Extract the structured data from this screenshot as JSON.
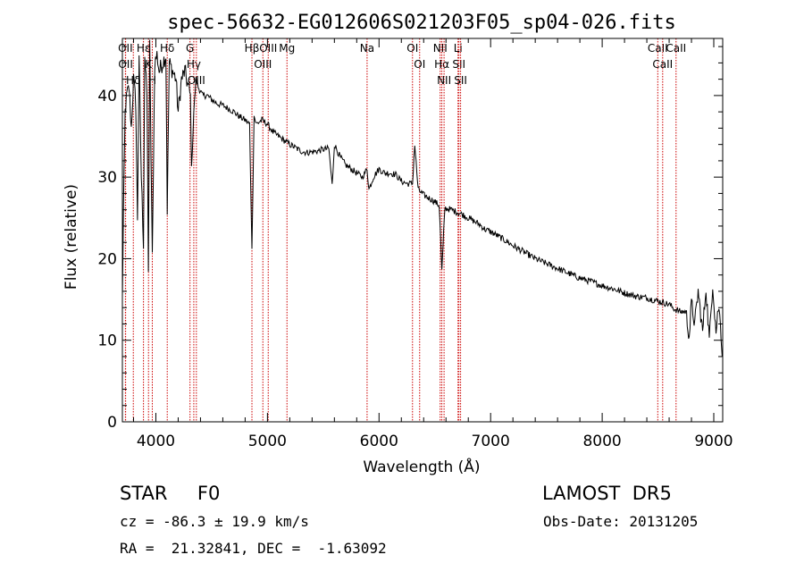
{
  "chart_data": {
    "type": "line",
    "title": "spec-56632-EG012606S021203F05_sp04-026.fits",
    "xlabel": "Wavelength (Å)",
    "ylabel": "Flux (relative)",
    "xlim": [
      3700,
      9080
    ],
    "ylim": [
      0,
      47
    ],
    "xticks": [
      4000,
      5000,
      6000,
      7000,
      8000,
      9000
    ],
    "yticks": [
      0,
      10,
      20,
      30,
      40
    ],
    "series": [
      {
        "color": "#000000",
        "x": [
          3700,
          3710,
          3725,
          3740,
          3760,
          3780,
          3800,
          3820,
          3835,
          3850,
          3870,
          3889,
          3900,
          3920,
          3933,
          3945,
          3968,
          3990,
          4010,
          4030,
          4060,
          4090,
          4102,
          4120,
          4150,
          4180,
          4200,
          4230,
          4260,
          4290,
          4310,
          4320,
          4340,
          4360,
          4380,
          4420,
          4460,
          4500,
          4550,
          4600,
          4650,
          4700,
          4750,
          4800,
          4840,
          4861,
          4880,
          4900,
          4950,
          5000,
          5050,
          5100,
          5150,
          5200,
          5250,
          5300,
          5350,
          5400,
          5450,
          5500,
          5550,
          5580,
          5600,
          5650,
          5700,
          5750,
          5800,
          5850,
          5893,
          5910,
          5950,
          6000,
          6050,
          6100,
          6150,
          6200,
          6250,
          6300,
          6320,
          6350,
          6400,
          6450,
          6500,
          6540,
          6563,
          6590,
          6650,
          6700,
          6750,
          6800,
          6850,
          6900,
          6950,
          7000,
          7100,
          7200,
          7300,
          7400,
          7500,
          7600,
          7700,
          7800,
          7900,
          8000,
          8100,
          8200,
          8300,
          8400,
          8500,
          8600,
          8650,
          8700,
          8750,
          8780,
          8800,
          8830,
          8860,
          8900,
          8930,
          8960,
          8990,
          9020,
          9040,
          9060,
          9075
        ],
        "y": [
          15,
          26,
          38,
          40,
          41,
          36,
          42,
          39,
          25,
          44,
          30,
          22,
          45,
          40,
          19,
          46,
          20,
          44,
          45,
          43,
          44,
          45,
          26,
          44,
          43,
          42,
          38,
          42,
          43,
          41,
          40,
          31,
          38,
          42,
          41,
          40,
          40,
          39.5,
          39,
          38.8,
          38.4,
          38,
          37.4,
          37,
          36.5,
          21,
          37.5,
          36.5,
          37,
          36.5,
          35.5,
          35,
          34.5,
          34,
          33.6,
          33.2,
          33,
          33.1,
          33.2,
          33.4,
          33.5,
          29,
          34,
          32.5,
          31.5,
          31,
          30.5,
          30,
          31,
          28.5,
          30,
          31,
          30.5,
          30.5,
          30.3,
          29.5,
          29.2,
          29.2,
          34,
          28.5,
          27.8,
          27.4,
          27,
          26.5,
          18.5,
          26.2,
          26,
          25.7,
          25.4,
          25,
          24.6,
          24.2,
          23.6,
          23.3,
          22.5,
          21.6,
          20.8,
          20,
          19.4,
          18.8,
          18.2,
          17.6,
          17.2,
          16.7,
          16.3,
          15.8,
          15.4,
          15.2,
          14.8,
          14.4,
          13.8,
          13.5,
          13.5,
          10.5,
          14.5,
          12,
          16,
          11,
          16.5,
          10,
          17,
          11,
          14,
          12.5,
          8
        ]
      }
    ],
    "lines": [
      {
        "label": "Hδ",
        "wl": 3798
      },
      {
        "label": "OII",
        "wl": 3727
      },
      {
        "label": "OII",
        "wl": 3729
      },
      {
        "label": "Hε",
        "wl": 3889
      },
      {
        "label": "K",
        "wl": 3934
      },
      {
        "label": "H",
        "wl": 3968
      },
      {
        "label": "Hδ",
        "wl": 4102
      },
      {
        "label": "OIII",
        "wl": 4363
      },
      {
        "label": "Hγ",
        "wl": 4340
      },
      {
        "label": "G",
        "wl": 4306
      },
      {
        "label": "Hβ",
        "wl": 4861
      },
      {
        "label": "OIII",
        "wl": 4959
      },
      {
        "label": "OIII",
        "wl": 5007
      },
      {
        "label": "Mg",
        "wl": 5175
      },
      {
        "label": "Na",
        "wl": 5893
      },
      {
        "label": "OI",
        "wl": 6300
      },
      {
        "label": "OI",
        "wl": 6364
      },
      {
        "label": "NII",
        "wl": 6548
      },
      {
        "label": "Hα",
        "wl": 6563
      },
      {
        "label": "NII",
        "wl": 6583
      },
      {
        "label": "Li",
        "wl": 6708
      },
      {
        "label": "SII",
        "wl": 6716
      },
      {
        "label": "SII",
        "wl": 6731
      },
      {
        "label": "CaII",
        "wl": 8498
      },
      {
        "label": "CaII",
        "wl": 8542
      },
      {
        "label": "CaII",
        "wl": 8662
      }
    ],
    "grid": false,
    "legend": "none"
  },
  "info": {
    "star_class": "STAR     F0",
    "survey": "LAMOST  DR5",
    "cz": "cz = -86.3 ± 19.9 km/s",
    "obs_date": "Obs-Date: 20131205",
    "radec": "RA =  21.32841, DEC =  -1.63092"
  },
  "colors": {
    "line_marker": "#cc0000",
    "spectrum": "#000000"
  }
}
